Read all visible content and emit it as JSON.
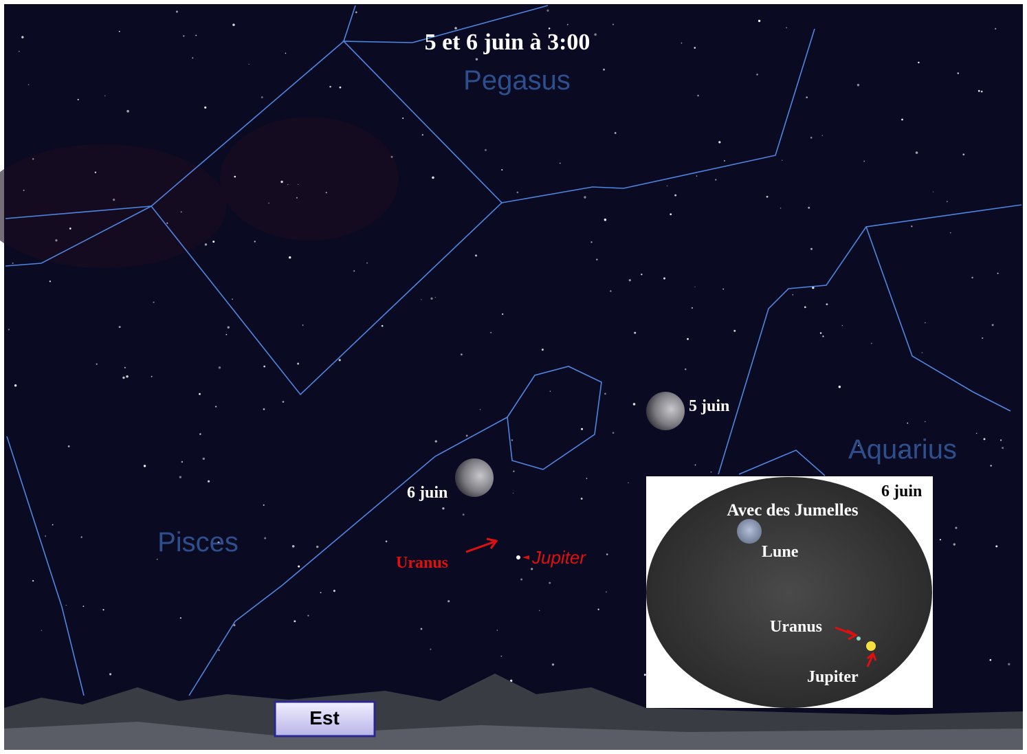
{
  "title": "5 et 6 juin à 3:00",
  "constellations": [
    "Pegasus",
    "Aquarius",
    "Pisces"
  ],
  "moon_labels": [
    "5 juin",
    "6 juin"
  ],
  "planet_labels": [
    "Uranus",
    "Jupiter"
  ],
  "direction": "Est",
  "inset": {
    "date": "6 juin",
    "title": "Avec des Jumelles",
    "labels": [
      "Lune",
      "Uranus",
      "Jupiter"
    ]
  }
}
